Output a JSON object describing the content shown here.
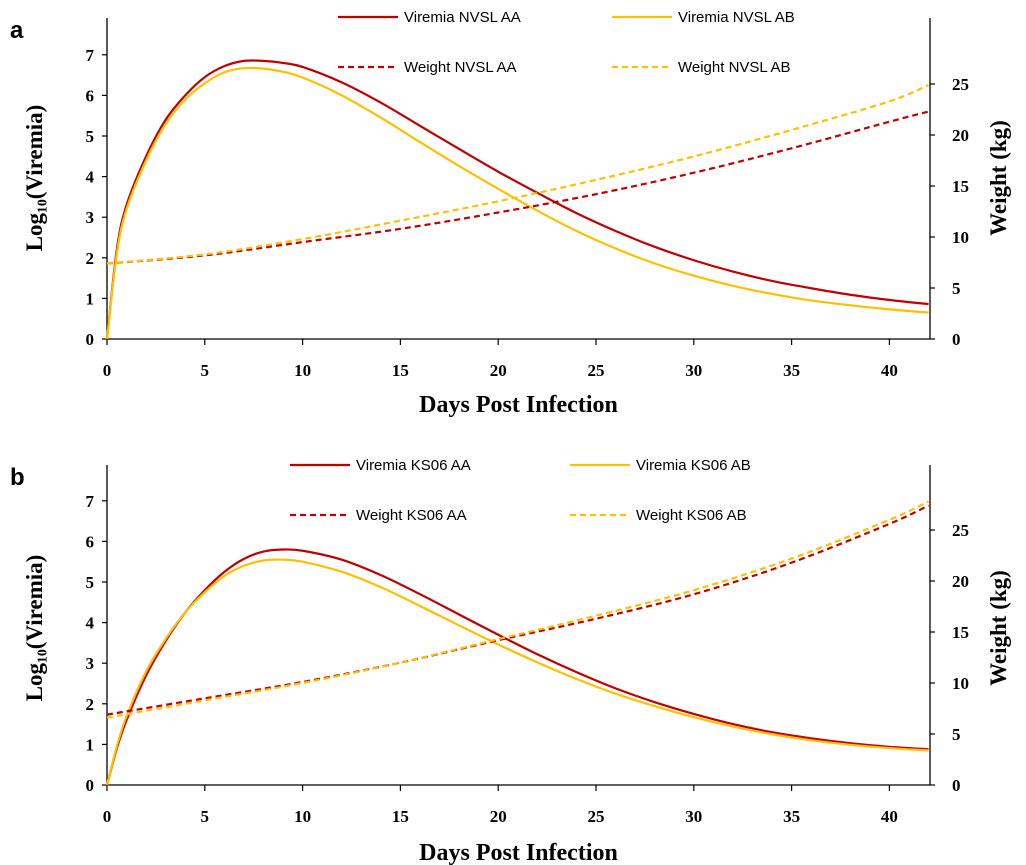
{
  "colors": {
    "aa": "#c00000",
    "ab": "#ffc000",
    "axis": "#000000"
  },
  "chart_data": [
    {
      "type": "line",
      "panel_label": "a",
      "xlabel": "Days Post Infection",
      "ylabel_left": "Log₁₀(Viremia)",
      "ylabel_right": "Weight (kg)",
      "xlim": [
        0,
        42
      ],
      "ylim_left": [
        0,
        8
      ],
      "ylim_right": [
        0,
        28
      ],
      "x_ticks": [
        0,
        5,
        10,
        15,
        20,
        25,
        30,
        35,
        40
      ],
      "y_ticks_left": [
        0,
        1,
        2,
        3,
        4,
        5,
        6,
        7
      ],
      "y_ticks_right": [
        0,
        5,
        10,
        15,
        20,
        25
      ],
      "grid": false,
      "legend_position": "top-center",
      "series": [
        {
          "name": "Viremia NVSL AA",
          "axis": "left",
          "style": "solid",
          "color": "#c00000",
          "x": [
            0,
            0.5,
            1,
            2,
            3,
            4,
            5,
            6,
            7,
            8,
            9,
            10,
            12,
            14,
            16,
            18,
            20,
            22,
            24,
            26,
            28,
            30,
            32,
            34,
            36,
            38,
            40,
            42
          ],
          "y": [
            0,
            2.2,
            3.3,
            4.5,
            5.4,
            6.0,
            6.45,
            6.72,
            6.85,
            6.85,
            6.8,
            6.7,
            6.32,
            5.82,
            5.25,
            4.68,
            4.12,
            3.6,
            3.1,
            2.66,
            2.27,
            1.94,
            1.66,
            1.43,
            1.25,
            1.09,
            0.96,
            0.86
          ]
        },
        {
          "name": "Viremia NVSL AB",
          "axis": "left",
          "style": "solid",
          "color": "#ffc000",
          "x": [
            0,
            0.5,
            1,
            2,
            3,
            4,
            5,
            6,
            7,
            8,
            9,
            10,
            12,
            14,
            16,
            18,
            20,
            22,
            24,
            26,
            28,
            30,
            32,
            34,
            36,
            38,
            40,
            42
          ],
          "y": [
            0,
            2.1,
            3.2,
            4.4,
            5.3,
            5.9,
            6.3,
            6.57,
            6.67,
            6.66,
            6.58,
            6.44,
            6.0,
            5.45,
            4.85,
            4.26,
            3.7,
            3.16,
            2.66,
            2.23,
            1.86,
            1.56,
            1.31,
            1.11,
            0.95,
            0.83,
            0.73,
            0.65
          ]
        },
        {
          "name": "Weight NVSL AA",
          "axis": "right",
          "style": "dashed",
          "color": "#c00000",
          "x": [
            0,
            5,
            10,
            15,
            20,
            25,
            30,
            35,
            40,
            42
          ],
          "y": [
            7.4,
            8.2,
            9.5,
            10.8,
            12.4,
            14.2,
            16.3,
            18.7,
            21.3,
            22.3
          ]
        },
        {
          "name": "Weight NVSL AB",
          "axis": "right",
          "style": "dashed",
          "color": "#ffc000",
          "x": [
            0,
            5,
            10,
            15,
            20,
            25,
            30,
            35,
            40,
            42
          ],
          "y": [
            7.4,
            8.3,
            9.8,
            11.6,
            13.5,
            15.6,
            17.9,
            20.5,
            23.3,
            24.9
          ]
        }
      ]
    },
    {
      "type": "line",
      "panel_label": "b",
      "xlabel": "Days Post Infection",
      "ylabel_left": "Log₁₀(Viremia)",
      "ylabel_right": "Weight (kg)",
      "xlim": [
        0,
        42
      ],
      "ylim_left": [
        0,
        8
      ],
      "ylim_right": [
        0,
        28
      ],
      "x_ticks": [
        0,
        5,
        10,
        15,
        20,
        25,
        30,
        35,
        40
      ],
      "y_ticks_left": [
        0,
        1,
        2,
        3,
        4,
        5,
        6,
        7
      ],
      "y_ticks_right": [
        0,
        5,
        10,
        15,
        20,
        25
      ],
      "grid": false,
      "legend_position": "top-center",
      "series": [
        {
          "name": "Viremia KS06 AA",
          "axis": "left",
          "style": "solid",
          "color": "#c00000",
          "x": [
            0,
            0.5,
            1,
            2,
            3,
            4,
            5,
            6,
            7,
            8,
            9,
            10,
            12,
            14,
            16,
            18,
            20,
            22,
            24,
            26,
            28,
            30,
            32,
            34,
            36,
            38,
            40,
            42
          ],
          "y": [
            0,
            0.9,
            1.6,
            2.7,
            3.55,
            4.25,
            4.8,
            5.25,
            5.57,
            5.75,
            5.8,
            5.77,
            5.55,
            5.17,
            4.7,
            4.2,
            3.7,
            3.22,
            2.78,
            2.38,
            2.04,
            1.75,
            1.5,
            1.3,
            1.15,
            1.03,
            0.94,
            0.88
          ]
        },
        {
          "name": "Viremia KS06 AB",
          "axis": "left",
          "style": "solid",
          "color": "#ffc000",
          "x": [
            0,
            0.5,
            1,
            2,
            3,
            4,
            5,
            6,
            7,
            8,
            9,
            10,
            12,
            14,
            16,
            18,
            20,
            22,
            24,
            26,
            28,
            30,
            32,
            34,
            36,
            38,
            40,
            42
          ],
          "y": [
            0,
            0.95,
            1.7,
            2.8,
            3.6,
            4.25,
            4.75,
            5.15,
            5.4,
            5.53,
            5.55,
            5.5,
            5.25,
            4.87,
            4.41,
            3.93,
            3.46,
            3.02,
            2.61,
            2.25,
            1.94,
            1.67,
            1.44,
            1.25,
            1.1,
            0.99,
            0.91,
            0.85
          ]
        },
        {
          "name": "Weight KS06 AA",
          "axis": "right",
          "style": "dashed",
          "color": "#c00000",
          "x": [
            0,
            5,
            10,
            15,
            20,
            25,
            30,
            35,
            40,
            42
          ],
          "y": [
            6.9,
            8.5,
            10.1,
            12.0,
            14.2,
            16.3,
            18.7,
            21.8,
            25.6,
            27.4
          ]
        },
        {
          "name": "Weight KS06 AB",
          "axis": "right",
          "style": "dashed",
          "color": "#ffc000",
          "x": [
            0,
            5,
            10,
            15,
            20,
            25,
            30,
            35,
            40,
            42
          ],
          "y": [
            6.6,
            8.3,
            10.0,
            12.0,
            14.3,
            16.6,
            19.1,
            22.2,
            26.0,
            27.8
          ]
        }
      ]
    }
  ]
}
